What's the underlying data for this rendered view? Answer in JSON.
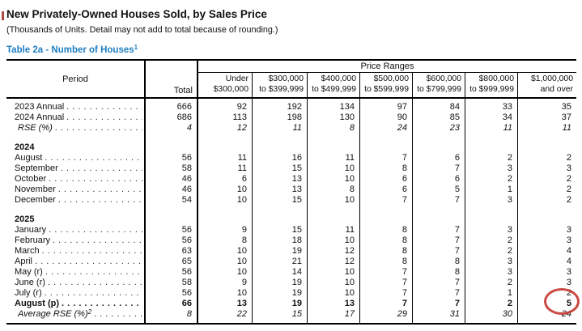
{
  "page": {
    "title": "New Privately-Owned Houses Sold, by Sales Price",
    "subtitle": "(Thousands of Units.  Detail may not add to total because of rounding.)",
    "table_title": "Table 2a - Number of Houses",
    "table_title_sup": "1",
    "colors": {
      "table_title_blue": "#1f7ec2",
      "annotation_red": "#c4372c",
      "title_marker_red": "#b04a42"
    }
  },
  "table": {
    "leader_dots": ". . . . . . . . . . . . . . . . . . . . . . . . . . . . . . . . . . . . . . . . . . . . .",
    "header": {
      "period": "Period",
      "total": "Total",
      "price_ranges": "Price Ranges",
      "columns": [
        {
          "line1": "Under",
          "line2": "$300,000"
        },
        {
          "line1": "$300,000",
          "line2": "to $399,999"
        },
        {
          "line1": "$400,000",
          "line2": "to $499,999"
        },
        {
          "line1": "$500,000",
          "line2": "to $599,999"
        },
        {
          "line1": "$600,000",
          "line2": "to $799,999"
        },
        {
          "line1": "$800,000",
          "line2": "to $999,999"
        },
        {
          "line1": "$1,000,000",
          "line2": "and over"
        }
      ]
    },
    "rows": [
      {
        "type": "data",
        "label": "2023 Annual",
        "values": [
          "666",
          "92",
          "192",
          "134",
          "97",
          "84",
          "33",
          "35"
        ]
      },
      {
        "type": "data",
        "label": "2024 Annual",
        "values": [
          "686",
          "113",
          "198",
          "130",
          "90",
          "85",
          "34",
          "37"
        ]
      },
      {
        "type": "data",
        "style": "italic",
        "label": "RSE (%)",
        "values": [
          "4",
          "12",
          "11",
          "8",
          "24",
          "23",
          "11",
          "11"
        ]
      },
      {
        "type": "group",
        "label": "2024"
      },
      {
        "type": "data",
        "label": "August",
        "values": [
          "56",
          "11",
          "16",
          "11",
          "7",
          "6",
          "2",
          "2"
        ]
      },
      {
        "type": "data",
        "label": "September",
        "values": [
          "58",
          "11",
          "15",
          "10",
          "8",
          "7",
          "3",
          "3"
        ]
      },
      {
        "type": "data",
        "label": "October",
        "values": [
          "46",
          "6",
          "13",
          "10",
          "6",
          "6",
          "2",
          "2"
        ]
      },
      {
        "type": "data",
        "label": "November",
        "values": [
          "46",
          "10",
          "13",
          "8",
          "6",
          "5",
          "1",
          "2"
        ]
      },
      {
        "type": "data",
        "label": "December",
        "values": [
          "54",
          "10",
          "15",
          "10",
          "7",
          "7",
          "3",
          "2"
        ]
      },
      {
        "type": "group",
        "label": "2025"
      },
      {
        "type": "data",
        "label": "January",
        "values": [
          "56",
          "9",
          "15",
          "11",
          "8",
          "7",
          "3",
          "3"
        ]
      },
      {
        "type": "data",
        "label": "February",
        "values": [
          "56",
          "8",
          "18",
          "10",
          "8",
          "7",
          "2",
          "3"
        ]
      },
      {
        "type": "data",
        "label": "March",
        "values": [
          "63",
          "10",
          "19",
          "12",
          "8",
          "7",
          "2",
          "4"
        ]
      },
      {
        "type": "data",
        "label": "April",
        "values": [
          "65",
          "10",
          "21",
          "12",
          "8",
          "8",
          "3",
          "4"
        ]
      },
      {
        "type": "data",
        "label": "May (r)",
        "values": [
          "56",
          "10",
          "14",
          "10",
          "7",
          "8",
          "3",
          "3"
        ]
      },
      {
        "type": "data",
        "label": "June (r)",
        "values": [
          "58",
          "9",
          "19",
          "10",
          "7",
          "7",
          "2",
          "3"
        ]
      },
      {
        "type": "data",
        "label": "July (r)",
        "values": [
          "56",
          "10",
          "19",
          "10",
          "7",
          "7",
          "1",
          "2"
        ]
      },
      {
        "type": "data",
        "style": "bold",
        "label": "August (p)",
        "values": [
          "66",
          "13",
          "19",
          "13",
          "7",
          "7",
          "2",
          "5"
        ]
      },
      {
        "type": "data",
        "style": "italic",
        "label": "Average RSE (%)",
        "sup": "2",
        "values": [
          "8",
          "22",
          "15",
          "17",
          "29",
          "31",
          "30",
          "24"
        ]
      }
    ],
    "annotation": {
      "circled_value": "5",
      "circled_row": "August (p)",
      "circled_column": "$1,000,000 and over"
    }
  }
}
